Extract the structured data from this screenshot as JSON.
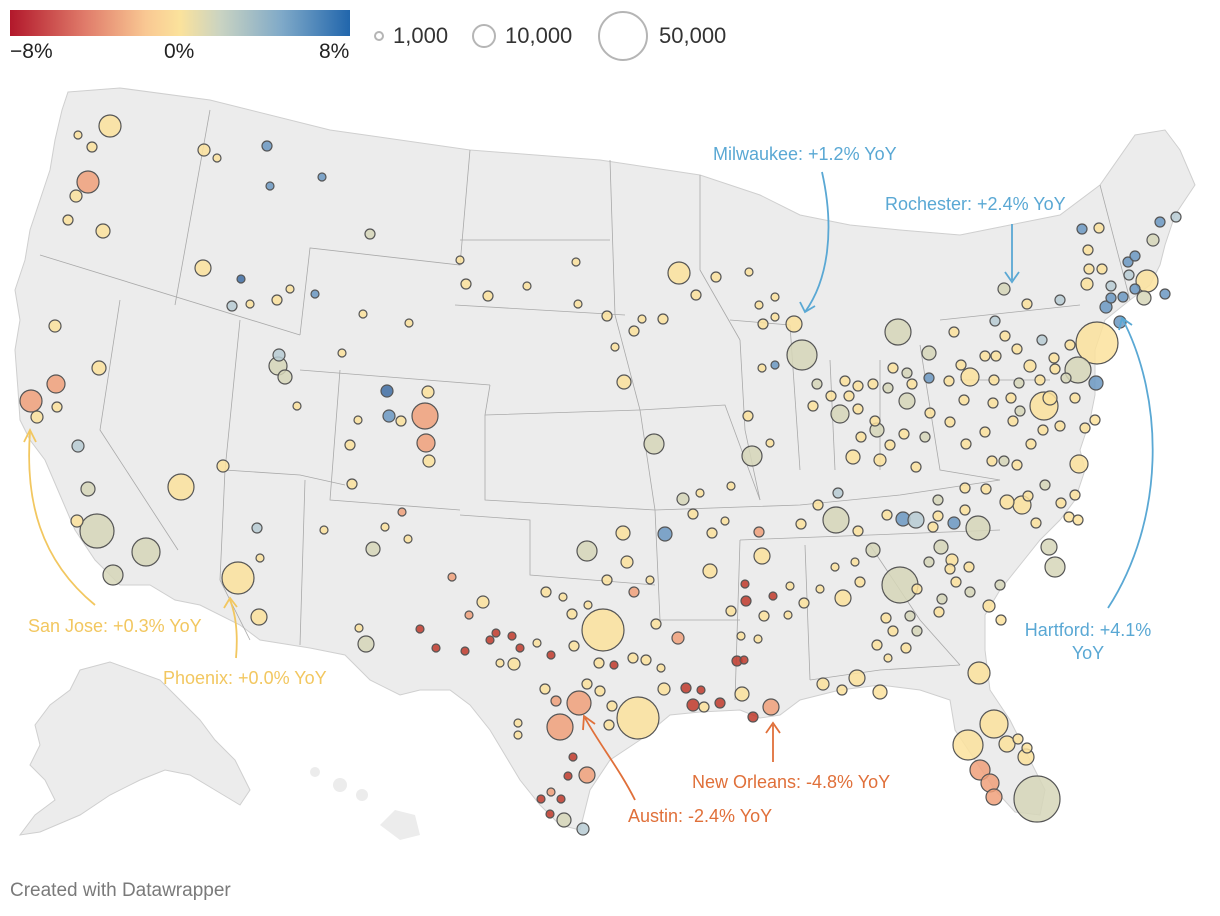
{
  "legend": {
    "color_min_label": "−8%",
    "color_mid_label": "0%",
    "color_max_label": "8%",
    "size_labels": [
      "1,000",
      "10,000",
      "50,000"
    ]
  },
  "colors": {
    "neg_strong": "#b2182b",
    "neg_light": "#f9c893",
    "neutral": "#fbe29c",
    "pos_light": "#7fa9c8",
    "pos_strong": "#2166ac",
    "land": "#ececec",
    "border": "#a9a9a9",
    "ann_yellow": "#f2c760",
    "ann_blue": "#5aa8d4",
    "ann_orange": "#e0703a"
  },
  "annotations": {
    "milwaukee": "Milwaukee: +1.2% YoY",
    "rochester": "Rochester: +2.4% YoY",
    "hartford_1": "Hartford: +4.1%",
    "hartford_2": "YoY",
    "san_jose": "San Jose: +0.3% YoY",
    "phoenix": "Phoenix: +0.0% YoY",
    "austin": "Austin: -2.4% YoY",
    "new_orleans": "New Orleans: -4.8% YoY"
  },
  "credit": "Created with Datawrapper"
}
